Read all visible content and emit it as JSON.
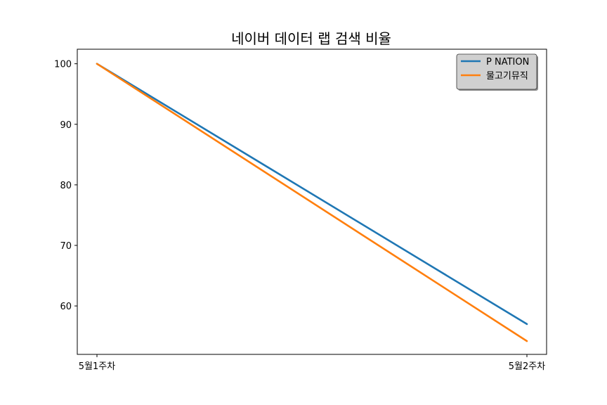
{
  "chart_data": {
    "type": "line",
    "title": "네이버 데이터 랩 검색 비율",
    "xlabel": "",
    "ylabel": "",
    "categories": [
      "5월1주차",
      "5월2주차"
    ],
    "series": [
      {
        "name": "P NATION",
        "values": [
          100,
          57
        ],
        "color": "#1f77b4"
      },
      {
        "name": "물고기뮤직",
        "values": [
          100,
          54.2
        ],
        "color": "#ff7f0e"
      }
    ],
    "ylim": [
      52.0,
      102.4
    ],
    "yticks": [
      60,
      70,
      80,
      90,
      100
    ],
    "grid": false,
    "legend": "top-right"
  }
}
